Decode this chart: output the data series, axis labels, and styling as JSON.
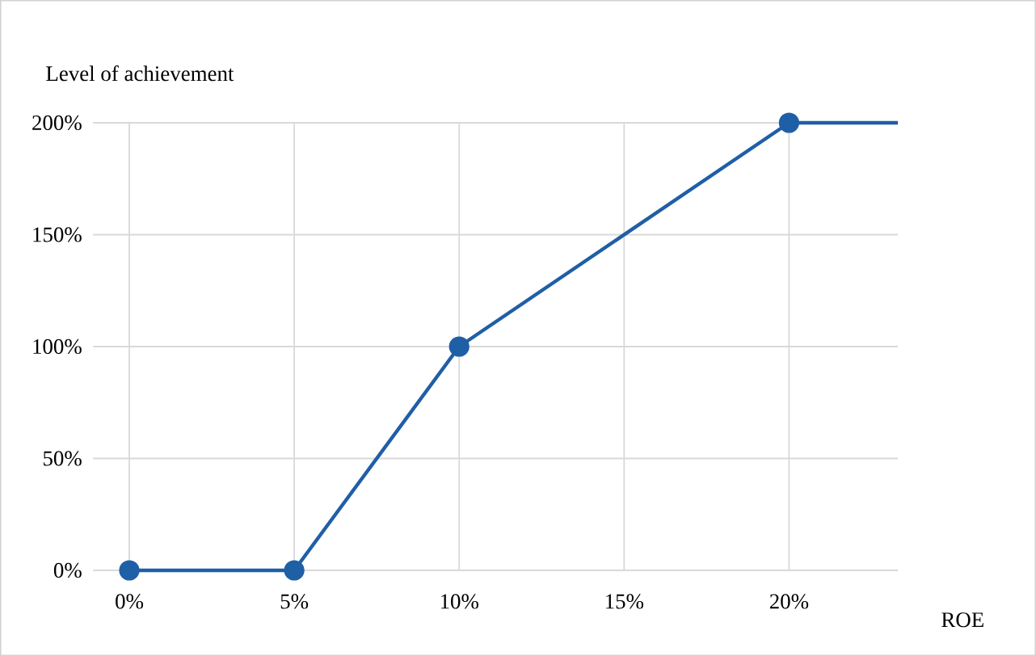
{
  "chart_data": {
    "type": "line",
    "xlabel": "ROE",
    "ylabel": "Level of achievement",
    "x": [
      0,
      5,
      10,
      20
    ],
    "series": [
      {
        "color": "#1f5fa6",
        "values": [
          0,
          0,
          100,
          200
        ],
        "marker": "circle"
      },
      {
        "color": "#1f5fa6",
        "x": [
          20,
          23.3
        ],
        "values": [
          200,
          200
        ],
        "marker": "none"
      }
    ],
    "xlim": [
      -1.1,
      23.3
    ],
    "ylim": [
      0,
      200
    ],
    "xticks": [
      {
        "value": 0,
        "label": "0%"
      },
      {
        "value": 5,
        "label": "5%"
      },
      {
        "value": 10,
        "label": "10%"
      },
      {
        "value": 15,
        "label": "15%"
      },
      {
        "value": 20,
        "label": "20%"
      }
    ],
    "yticks": [
      {
        "value": 0,
        "label": "0%"
      },
      {
        "value": 50,
        "label": "50%"
      },
      {
        "value": 100,
        "label": "100%"
      },
      {
        "value": 150,
        "label": "150%"
      },
      {
        "value": 200,
        "label": "200%"
      }
    ],
    "grid": true,
    "line_style": "solid"
  }
}
